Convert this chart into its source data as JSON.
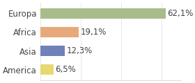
{
  "categories": [
    "Europa",
    "Africa",
    "Asia",
    "America"
  ],
  "values": [
    62.1,
    19.1,
    12.3,
    6.5
  ],
  "labels": [
    "62,1%",
    "19,1%",
    "12,3%",
    "6,5%"
  ],
  "bar_colors": [
    "#a8bc8a",
    "#e8a97a",
    "#7080b8",
    "#e8d870"
  ],
  "xlim": [
    0,
    70
  ],
  "background_color": "#ffffff",
  "label_fontsize": 8.5,
  "bar_height": 0.55
}
